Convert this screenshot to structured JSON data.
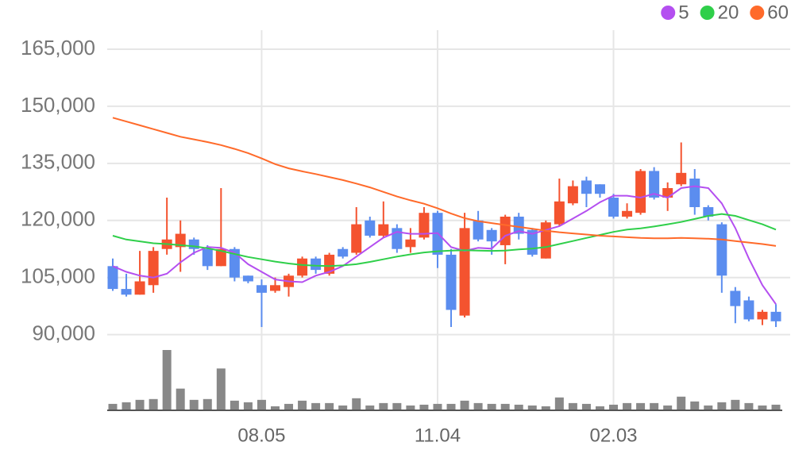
{
  "chart_data": {
    "type": "candlestick",
    "categories": [
      null,
      null,
      null,
      null,
      null,
      null,
      null,
      null,
      null,
      null,
      null,
      "08.05",
      null,
      null,
      null,
      null,
      null,
      null,
      null,
      null,
      null,
      null,
      null,
      null,
      "11.04",
      null,
      null,
      null,
      null,
      null,
      null,
      null,
      null,
      null,
      null,
      null,
      null,
      "02.03",
      null,
      null,
      null,
      null,
      null,
      null,
      null,
      null,
      null,
      null,
      null,
      null
    ],
    "open": [
      108000,
      102000,
      100500,
      103000,
      112500,
      113000,
      115000,
      112500,
      108000,
      112500,
      105500,
      103000,
      101500,
      102500,
      105500,
      110000,
      106000,
      112500,
      111500,
      120000,
      116000,
      118000,
      113000,
      115500,
      122000,
      111000,
      95000,
      120000,
      117500,
      113500,
      121000,
      117500,
      110000,
      119000,
      124500,
      130500,
      129500,
      126000,
      121000,
      122000,
      133000,
      126000,
      129500,
      131000,
      123500,
      119000,
      101500,
      99000,
      94000,
      96000
    ],
    "high": [
      110000,
      106000,
      112000,
      113000,
      126000,
      120000,
      115500,
      113500,
      128500,
      113000,
      105500,
      104500,
      105000,
      106000,
      110500,
      110500,
      111500,
      113000,
      123500,
      121000,
      125000,
      119000,
      118000,
      123500,
      122500,
      112500,
      122000,
      122500,
      118000,
      121500,
      122000,
      118000,
      120000,
      131000,
      130500,
      131500,
      129500,
      127000,
      124500,
      133500,
      134000,
      130000,
      140500,
      133500,
      124000,
      119500,
      102500,
      100000,
      96500,
      98000
    ],
    "low": [
      101500,
      100000,
      100500,
      101000,
      111000,
      106500,
      111000,
      107000,
      108000,
      104000,
      103500,
      92000,
      101000,
      100000,
      105000,
      106000,
      105500,
      110000,
      111000,
      115500,
      115500,
      111500,
      111500,
      115000,
      107500,
      92000,
      94500,
      114500,
      111000,
      108500,
      115000,
      110500,
      110000,
      118500,
      124000,
      123500,
      126000,
      120500,
      120500,
      121500,
      125500,
      122500,
      129000,
      121500,
      120000,
      101000,
      93000,
      93500,
      92500,
      92000
    ],
    "close": [
      102000,
      100500,
      104000,
      112000,
      115000,
      116500,
      112500,
      108000,
      112500,
      105000,
      104000,
      101000,
      103000,
      105500,
      110000,
      107000,
      111000,
      110500,
      119000,
      116000,
      119000,
      112500,
      115000,
      122000,
      111000,
      96500,
      118000,
      115000,
      114500,
      121000,
      116500,
      111000,
      119500,
      125000,
      129000,
      127000,
      127000,
      121000,
      122500,
      133000,
      126000,
      128500,
      132500,
      123500,
      121000,
      105500,
      97500,
      94000,
      96000,
      93500
    ],
    "up_color": "#f4532f",
    "down_color": "#5b8def",
    "volume": [
      8,
      10,
      13,
      14,
      75,
      27,
      13,
      14,
      52,
      12,
      10,
      13,
      5,
      8,
      12,
      9,
      9,
      6,
      15,
      6,
      9,
      9,
      6,
      7,
      8,
      8,
      12,
      9,
      8,
      8,
      7,
      6,
      5,
      16,
      9,
      8,
      5,
      7,
      9,
      9,
      9,
      6,
      17,
      11,
      6,
      10,
      13,
      9,
      6,
      7
    ],
    "volume_color": "#888888",
    "series": [
      {
        "name": "5",
        "color": "#b44ff0",
        "values": [
          108000,
          106500,
          105500,
          105000,
          106000,
          109000,
          111500,
          113000,
          112800,
          111500,
          108500,
          106500,
          104500,
          104000,
          103800,
          105500,
          106500,
          108000,
          110500,
          113000,
          115500,
          117000,
          116500,
          116500,
          116700,
          113000,
          112000,
          112800,
          112600,
          116000,
          117200,
          116500,
          117500,
          118500,
          120500,
          122500,
          124800,
          126500,
          126500,
          126000,
          127000,
          126000,
          128500,
          129000,
          128500,
          124500,
          118000,
          110000,
          103000,
          98000
        ]
      },
      {
        "name": "20",
        "color": "#2fcf4a",
        "values": [
          116000,
          115000,
          114500,
          114000,
          113800,
          113500,
          113200,
          112700,
          112000,
          111200,
          110400,
          109800,
          109200,
          108700,
          108300,
          108100,
          108000,
          108200,
          108500,
          109100,
          109800,
          110500,
          111100,
          111600,
          111900,
          112100,
          112200,
          112100,
          112000,
          112100,
          112400,
          112600,
          113000,
          113800,
          114600,
          115400,
          116200,
          117000,
          117600,
          117900,
          118400,
          119000,
          119600,
          120400,
          121200,
          121700,
          121200,
          120100,
          119000,
          117600
        ]
      },
      {
        "name": "60",
        "color": "#ff6a2a",
        "values": [
          147000,
          146000,
          145000,
          144000,
          143000,
          142000,
          141300,
          140600,
          139800,
          138800,
          137700,
          136300,
          134800,
          133700,
          132900,
          132200,
          131400,
          130600,
          129700,
          128700,
          127500,
          126300,
          125300,
          124400,
          123200,
          121800,
          120600,
          119800,
          119300,
          118800,
          118300,
          117800,
          117300,
          116900,
          116600,
          116300,
          116000,
          115800,
          115600,
          115400,
          115300,
          115300,
          115400,
          115300,
          115200,
          115000,
          114600,
          114200,
          113800,
          113300
        ]
      }
    ],
    "ylim": [
      82000,
      170000
    ],
    "yticks": [
      {
        "value": 90000,
        "label": "90,000"
      },
      {
        "value": 105000,
        "label": "105,000"
      },
      {
        "value": 120000,
        "label": "120,000"
      },
      {
        "value": 135000,
        "label": "135,000"
      },
      {
        "value": 150000,
        "label": "150,000"
      },
      {
        "value": 165000,
        "label": "165,000"
      }
    ],
    "grid": true,
    "legend_position": "top-right"
  }
}
